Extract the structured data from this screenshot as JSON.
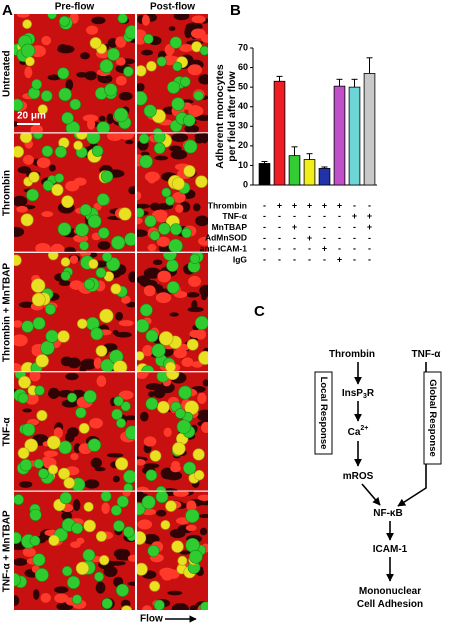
{
  "panel_a": {
    "label": "A",
    "columns": [
      "Pre-flow",
      "Post-flow"
    ],
    "rows": [
      "Untreated",
      "Thrombin",
      "Thrombin + MnTBAP",
      "TNF-α",
      "TNF-α + MnTBAP"
    ],
    "scale_bar": "20 μm",
    "flow": "Flow"
  },
  "chart_data": {
    "type": "bar",
    "panel_label": "B",
    "ylabel": [
      "Adherent monocytes",
      "per field after flow"
    ],
    "values": [
      11,
      53,
      15,
      13,
      8.5,
      50.5,
      50,
      57
    ],
    "errors": [
      1,
      2.5,
      4.5,
      3,
      0.7,
      3.5,
      4,
      8
    ],
    "colors": [
      "#000000",
      "#ee1c24",
      "#33cc33",
      "#f2ee1c",
      "#2233aa",
      "#c050c8",
      "#6cd6d6",
      "#c8c8c8"
    ],
    "ylim": [
      0,
      70
    ],
    "yticks": [
      0,
      10,
      20,
      30,
      40,
      50,
      60,
      70
    ],
    "treatments": [
      {
        "name": "Thrombin",
        "signs": [
          "-",
          "+",
          "+",
          "+",
          "+",
          "+",
          "-",
          "-"
        ]
      },
      {
        "name": "TNF-α",
        "signs": [
          "-",
          "-",
          "-",
          "-",
          "-",
          "-",
          "+",
          "+"
        ]
      },
      {
        "name": "MnTBAP",
        "signs": [
          "-",
          "-",
          "+",
          "-",
          "-",
          "-",
          "-",
          "+"
        ]
      },
      {
        "name": "AdMnSOD",
        "signs": [
          "-",
          "-",
          "-",
          "+",
          "-",
          "-",
          "-",
          "-"
        ]
      },
      {
        "name": "anti-ICAM-1",
        "signs": [
          "-",
          "-",
          "-",
          "-",
          "+",
          "-",
          "-",
          "-"
        ]
      },
      {
        "name": "IgG",
        "signs": [
          "-",
          "-",
          "-",
          "-",
          "-",
          "+",
          "-",
          "-"
        ]
      }
    ]
  },
  "panel_c": {
    "label": "C",
    "nodes": [
      {
        "parts": [
          "Thrombin"
        ]
      },
      {
        "parts": [
          "TNF-α"
        ]
      },
      {
        "parts": [
          "InsP",
          "3",
          "R"
        ]
      },
      {
        "parts": [
          "Ca",
          "2+"
        ]
      },
      {
        "parts": [
          "mROS"
        ]
      },
      {
        "parts": [
          "NF-κB"
        ]
      },
      {
        "parts": [
          "ICAM-1"
        ]
      },
      {
        "parts": [
          "Mononuclear"
        ]
      },
      {
        "parts": [
          "Cell Adhesion"
        ]
      }
    ],
    "boxes": [
      "Local Response",
      "Global Response"
    ]
  }
}
